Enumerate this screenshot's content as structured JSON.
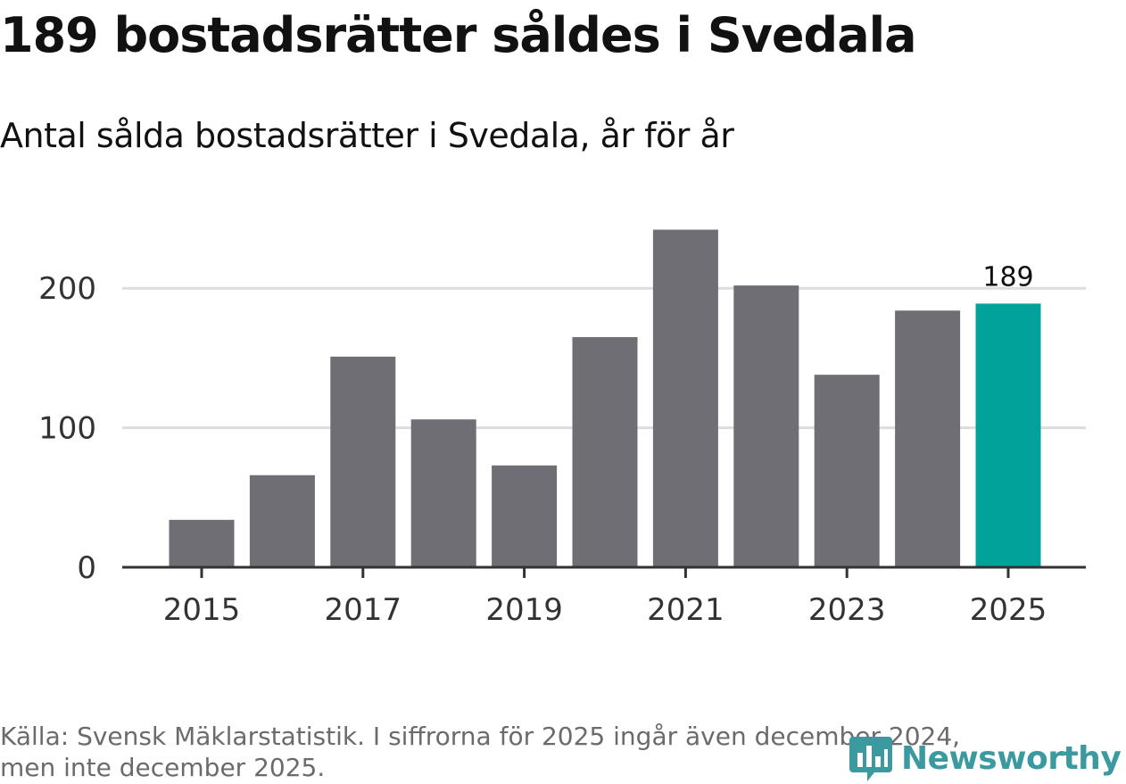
{
  "title": "189 bostadsrätter såldes i Svedala",
  "subtitle": "Antal sålda bostadsrätter i Svedala, år för år",
  "footer": {
    "source_line1": "Källa: Svensk Mäklarstatistik. I siffrorna för 2025 ingår även december 2024,",
    "source_line2": "men inte december 2025."
  },
  "logo": {
    "text": "Newsworthy",
    "icon": "newsworthy-logo-icon"
  },
  "colors": {
    "bar": "#6f6e74",
    "highlight": "#00a29a",
    "grid": "#dddddd",
    "axis": "#333333",
    "text": "#333333",
    "logo": "#3a9aa0"
  },
  "chart_data": {
    "type": "bar",
    "title": "Antal sålda bostadsrätter i Svedala, år för år",
    "xlabel": "",
    "ylabel": "",
    "categories": [
      "2015",
      "2016",
      "2017",
      "2018",
      "2019",
      "2020",
      "2021",
      "2022",
      "2023",
      "2024",
      "2025"
    ],
    "values": [
      34,
      66,
      151,
      106,
      73,
      165,
      242,
      202,
      138,
      184,
      189
    ],
    "highlight_category": "2025",
    "data_labels": [
      {
        "category": "2025",
        "text": "189"
      }
    ],
    "x_tick_labels": [
      "2015",
      "2017",
      "2019",
      "2021",
      "2023",
      "2025"
    ],
    "y_ticks": [
      0,
      100,
      200
    ],
    "y_tick_labels": [
      "0",
      "100",
      "200"
    ],
    "ylim": [
      0,
      250
    ],
    "grid": true,
    "legend": "none"
  }
}
